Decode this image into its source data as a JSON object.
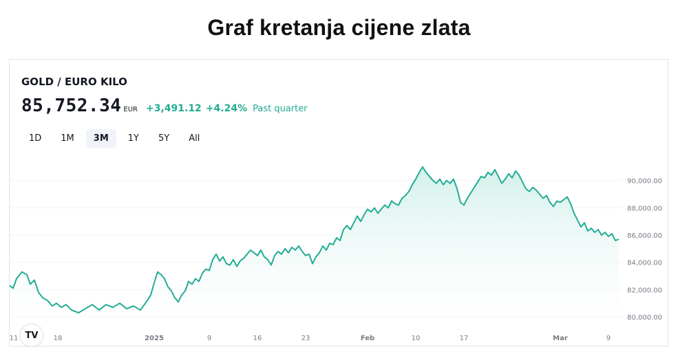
{
  "page": {
    "title": "Graf kretanja cijene zlata"
  },
  "widget": {
    "symbol": "GOLD / EURO KILO",
    "price": "85,752.34",
    "currency": "EUR",
    "change": "+3,491.12",
    "change_pct": "+4.24%",
    "period": "Past quarter",
    "tabs": [
      {
        "label": "1D",
        "active": false
      },
      {
        "label": "1M",
        "active": false
      },
      {
        "label": "3M",
        "active": true
      },
      {
        "label": "1Y",
        "active": false
      },
      {
        "label": "5Y",
        "active": false
      },
      {
        "label": "All",
        "active": false
      }
    ],
    "logo_text": "TV"
  },
  "colors": {
    "line": "#22ab94",
    "positive_text": "#22ab94",
    "area_top": "#cdeee8",
    "area_bottom": "#ffffff"
  },
  "chart_data": {
    "type": "area",
    "ylim": [
      79500,
      91800
    ],
    "y_ticks": [
      80000,
      82000,
      84000,
      86000,
      88000,
      90000
    ],
    "y_tick_labels": [
      "80,000.00",
      "82,000.00",
      "84,000.00",
      "86,000.00",
      "88,000.00",
      "90,000.00"
    ],
    "x_ticks": [
      {
        "label": "11",
        "t": 0
      },
      {
        "label": "18",
        "t": 7
      },
      {
        "label": "2025",
        "t": 21
      },
      {
        "label": "9",
        "t": 29
      },
      {
        "label": "16",
        "t": 36
      },
      {
        "label": "23",
        "t": 43
      },
      {
        "label": "Feb",
        "t": 52
      },
      {
        "label": "10",
        "t": 59
      },
      {
        "label": "17",
        "t": 66
      },
      {
        "label": "Mar",
        "t": 80
      },
      {
        "label": "9",
        "t": 87
      }
    ],
    "xlim": [
      0,
      89
    ],
    "points": [
      [
        0,
        82300
      ],
      [
        0.5,
        82100
      ],
      [
        1,
        82800
      ],
      [
        1.8,
        83300
      ],
      [
        2.5,
        83100
      ],
      [
        3,
        82400
      ],
      [
        3.6,
        82700
      ],
      [
        4.2,
        81800
      ],
      [
        4.8,
        81400
      ],
      [
        5.5,
        81200
      ],
      [
        6.2,
        80800
      ],
      [
        6.8,
        81000
      ],
      [
        7.5,
        80700
      ],
      [
        8.2,
        80900
      ],
      [
        9,
        80500
      ],
      [
        10,
        80300
      ],
      [
        11,
        80600
      ],
      [
        12,
        80900
      ],
      [
        13,
        80500
      ],
      [
        14,
        80900
      ],
      [
        15,
        80700
      ],
      [
        16,
        81000
      ],
      [
        17,
        80600
      ],
      [
        18,
        80800
      ],
      [
        19,
        80500
      ],
      [
        20,
        81200
      ],
      [
        20.5,
        81600
      ],
      [
        21,
        82500
      ],
      [
        21.5,
        83300
      ],
      [
        22,
        83100
      ],
      [
        22.5,
        82800
      ],
      [
        23,
        82200
      ],
      [
        23.5,
        81900
      ],
      [
        24,
        81400
      ],
      [
        24.5,
        81100
      ],
      [
        25,
        81600
      ],
      [
        25.5,
        81900
      ],
      [
        26,
        82600
      ],
      [
        26.5,
        82400
      ],
      [
        27,
        82800
      ],
      [
        27.5,
        82600
      ],
      [
        28,
        83200
      ],
      [
        28.5,
        83500
      ],
      [
        29,
        83400
      ],
      [
        29.5,
        84200
      ],
      [
        30,
        84600
      ],
      [
        30.5,
        84100
      ],
      [
        31,
        84400
      ],
      [
        31.5,
        83900
      ],
      [
        32,
        83800
      ],
      [
        32.5,
        84200
      ],
      [
        33,
        83700
      ],
      [
        33.5,
        84100
      ],
      [
        34,
        84300
      ],
      [
        34.5,
        84600
      ],
      [
        35,
        84900
      ],
      [
        35.5,
        84700
      ],
      [
        36,
        84500
      ],
      [
        36.5,
        84900
      ],
      [
        37,
        84400
      ],
      [
        37.5,
        84200
      ],
      [
        38,
        83800
      ],
      [
        38.5,
        84500
      ],
      [
        39,
        84800
      ],
      [
        39.5,
        84600
      ],
      [
        40,
        85000
      ],
      [
        40.5,
        84700
      ],
      [
        41,
        85100
      ],
      [
        41.5,
        84900
      ],
      [
        42,
        85200
      ],
      [
        42.5,
        84800
      ],
      [
        43,
        84500
      ],
      [
        43.5,
        84600
      ],
      [
        44,
        83900
      ],
      [
        44.5,
        84400
      ],
      [
        45,
        84700
      ],
      [
        45.5,
        85200
      ],
      [
        46,
        84900
      ],
      [
        46.5,
        85400
      ],
      [
        47,
        85300
      ],
      [
        47.5,
        85800
      ],
      [
        48,
        85600
      ],
      [
        48.5,
        86400
      ],
      [
        49,
        86700
      ],
      [
        49.5,
        86400
      ],
      [
        50,
        86900
      ],
      [
        50.5,
        87400
      ],
      [
        51,
        87000
      ],
      [
        51.5,
        87500
      ],
      [
        52,
        87900
      ],
      [
        52.5,
        87700
      ],
      [
        53,
        88000
      ],
      [
        53.5,
        87600
      ],
      [
        54,
        87900
      ],
      [
        54.5,
        88200
      ],
      [
        55,
        88000
      ],
      [
        55.5,
        88500
      ],
      [
        56,
        88300
      ],
      [
        56.5,
        88200
      ],
      [
        57,
        88700
      ],
      [
        57.5,
        88900
      ],
      [
        58,
        89200
      ],
      [
        58.5,
        89700
      ],
      [
        59,
        90100
      ],
      [
        59.5,
        90600
      ],
      [
        60,
        91000
      ],
      [
        60.5,
        90600
      ],
      [
        61,
        90300
      ],
      [
        61.5,
        90000
      ],
      [
        62,
        89800
      ],
      [
        62.5,
        90100
      ],
      [
        63,
        89700
      ],
      [
        63.5,
        90000
      ],
      [
        64,
        89800
      ],
      [
        64.5,
        90100
      ],
      [
        65,
        89400
      ],
      [
        65.5,
        88400
      ],
      [
        66,
        88200
      ],
      [
        66.5,
        88700
      ],
      [
        67,
        89100
      ],
      [
        67.5,
        89500
      ],
      [
        68,
        89900
      ],
      [
        68.5,
        90300
      ],
      [
        69,
        90200
      ],
      [
        69.5,
        90600
      ],
      [
        70,
        90400
      ],
      [
        70.5,
        90800
      ],
      [
        71,
        90300
      ],
      [
        71.5,
        89800
      ],
      [
        72,
        90100
      ],
      [
        72.5,
        90500
      ],
      [
        73,
        90200
      ],
      [
        73.5,
        90700
      ],
      [
        74,
        90400
      ],
      [
        74.5,
        89900
      ],
      [
        75,
        89400
      ],
      [
        75.5,
        89200
      ],
      [
        76,
        89500
      ],
      [
        76.5,
        89300
      ],
      [
        77,
        89000
      ],
      [
        77.5,
        88700
      ],
      [
        78,
        88900
      ],
      [
        78.5,
        88400
      ],
      [
        79,
        88100
      ],
      [
        79.5,
        88500
      ],
      [
        80,
        88400
      ],
      [
        80.5,
        88600
      ],
      [
        81,
        88800
      ],
      [
        81.5,
        88300
      ],
      [
        82,
        87600
      ],
      [
        82.5,
        87100
      ],
      [
        83,
        86600
      ],
      [
        83.5,
        86900
      ],
      [
        84,
        86300
      ],
      [
        84.5,
        86500
      ],
      [
        85,
        86200
      ],
      [
        85.5,
        86400
      ],
      [
        86,
        86000
      ],
      [
        86.5,
        86200
      ],
      [
        87,
        85900
      ],
      [
        87.5,
        86100
      ],
      [
        88,
        85600
      ],
      [
        88.5,
        85700
      ]
    ]
  }
}
